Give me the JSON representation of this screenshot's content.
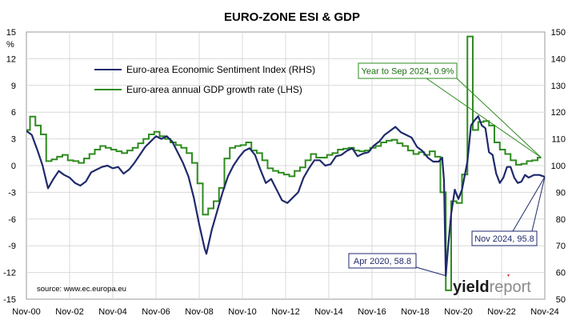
{
  "chart_data": {
    "type": "line",
    "title": "EURO-ZONE ESI & GDP",
    "x_ticks": [
      "Nov-00",
      "Nov-02",
      "Nov-04",
      "Nov-06",
      "Nov-08",
      "Nov-10",
      "Nov-12",
      "Nov-14",
      "Nov-16",
      "Nov-18",
      "Nov-20",
      "Nov-22",
      "Nov-24"
    ],
    "x_range": [
      "Nov-00",
      "Nov-24"
    ],
    "y_left": {
      "range": [
        -15,
        15
      ],
      "ticks": [
        "15",
        "12",
        "9",
        "6",
        "3",
        "0",
        "-3",
        "-6",
        "-9",
        "-12",
        "-15"
      ],
      "unit": "%"
    },
    "y_right": {
      "range": [
        50,
        150
      ],
      "ticks": [
        "150",
        "140",
        "130",
        "120",
        "110",
        "100",
        "90",
        "80",
        "70",
        "60",
        "50"
      ]
    },
    "grid": true,
    "legend_position": "top-left",
    "source": "source: www.ec.europa.eu",
    "brand": {
      "part1": "yield",
      "part2": "report"
    },
    "series": [
      {
        "name": "Euro-area Economic Sentiment Index (RHS)",
        "axis": "right",
        "color": "#1f2a6b",
        "points": [
          [
            "2000-11",
            113.0
          ],
          [
            "2001-02",
            111.5
          ],
          [
            "2001-05",
            106.0
          ],
          [
            "2001-08",
            100.0
          ],
          [
            "2001-11",
            91.5
          ],
          [
            "2002-02",
            95.0
          ],
          [
            "2002-05",
            98.0
          ],
          [
            "2002-08",
            96.5
          ],
          [
            "2002-11",
            95.5
          ],
          [
            "2003-02",
            93.5
          ],
          [
            "2003-05",
            92.5
          ],
          [
            "2003-08",
            94.0
          ],
          [
            "2003-11",
            97.5
          ],
          [
            "2004-02",
            98.5
          ],
          [
            "2004-05",
            99.5
          ],
          [
            "2004-08",
            100.0
          ],
          [
            "2004-11",
            99.0
          ],
          [
            "2005-02",
            99.5
          ],
          [
            "2005-05",
            97.0
          ],
          [
            "2005-08",
            98.5
          ],
          [
            "2005-11",
            101.0
          ],
          [
            "2006-02",
            104.0
          ],
          [
            "2006-05",
            107.0
          ],
          [
            "2006-08",
            109.0
          ],
          [
            "2006-11",
            111.0
          ],
          [
            "2007-02",
            110.0
          ],
          [
            "2007-05",
            111.0
          ],
          [
            "2007-08",
            109.0
          ],
          [
            "2007-11",
            105.0
          ],
          [
            "2008-02",
            101.0
          ],
          [
            "2008-05",
            96.0
          ],
          [
            "2008-08",
            88.0
          ],
          [
            "2008-11",
            78.0
          ],
          [
            "2009-02",
            69.0
          ],
          [
            "2009-03",
            67.0
          ],
          [
            "2009-06",
            76.0
          ],
          [
            "2009-09",
            83.0
          ],
          [
            "2009-12",
            90.0
          ],
          [
            "2010-03",
            96.0
          ],
          [
            "2010-06",
            100.0
          ],
          [
            "2010-09",
            103.0
          ],
          [
            "2010-12",
            105.5
          ],
          [
            "2011-03",
            106.5
          ],
          [
            "2011-06",
            104.0
          ],
          [
            "2011-09",
            98.5
          ],
          [
            "2011-12",
            93.5
          ],
          [
            "2012-03",
            95.0
          ],
          [
            "2012-06",
            91.0
          ],
          [
            "2012-09",
            87.0
          ],
          [
            "2012-12",
            86.0
          ],
          [
            "2013-03",
            88.0
          ],
          [
            "2013-06",
            90.0
          ],
          [
            "2013-09",
            95.5
          ],
          [
            "2013-12",
            99.0
          ],
          [
            "2014-03",
            102.0
          ],
          [
            "2014-06",
            102.0
          ],
          [
            "2014-09",
            100.0
          ],
          [
            "2014-12",
            100.5
          ],
          [
            "2015-03",
            103.5
          ],
          [
            "2015-06",
            104.0
          ],
          [
            "2015-09",
            105.5
          ],
          [
            "2015-12",
            106.5
          ],
          [
            "2016-03",
            103.5
          ],
          [
            "2016-06",
            104.5
          ],
          [
            "2016-09",
            105.0
          ],
          [
            "2016-12",
            107.5
          ],
          [
            "2017-03",
            109.0
          ],
          [
            "2017-06",
            111.5
          ],
          [
            "2017-09",
            113.0
          ],
          [
            "2017-12",
            114.5
          ],
          [
            "2018-03",
            112.5
          ],
          [
            "2018-06",
            111.5
          ],
          [
            "2018-09",
            110.5
          ],
          [
            "2018-12",
            107.0
          ],
          [
            "2019-03",
            105.5
          ],
          [
            "2019-06",
            103.0
          ],
          [
            "2019-09",
            101.5
          ],
          [
            "2019-12",
            101.5
          ],
          [
            "2020-02",
            103.0
          ],
          [
            "2020-03",
            94.5
          ],
          [
            "2020-04",
            58.8
          ],
          [
            "2020-05",
            67.5
          ],
          [
            "2020-07",
            82.0
          ],
          [
            "2020-09",
            91.0
          ],
          [
            "2020-11",
            87.5
          ],
          [
            "2021-01",
            91.0
          ],
          [
            "2021-04",
            101.5
          ],
          [
            "2021-06",
            115.0
          ],
          [
            "2021-08",
            117.0
          ],
          [
            "2021-10",
            118.5
          ],
          [
            "2021-12",
            115.0
          ],
          [
            "2022-02",
            114.0
          ],
          [
            "2022-04",
            105.0
          ],
          [
            "2022-06",
            104.0
          ],
          [
            "2022-08",
            97.0
          ],
          [
            "2022-10",
            93.5
          ],
          [
            "2022-12",
            95.5
          ],
          [
            "2023-02",
            99.5
          ],
          [
            "2023-04",
            99.5
          ],
          [
            "2023-06",
            95.5
          ],
          [
            "2023-08",
            93.5
          ],
          [
            "2023-10",
            94.0
          ],
          [
            "2023-12",
            96.5
          ],
          [
            "2024-02",
            95.5
          ],
          [
            "2024-05",
            96.5
          ],
          [
            "2024-08",
            96.5
          ],
          [
            "2024-11",
            95.8
          ]
        ]
      },
      {
        "name": "Euro-area annual GDP growth rate (LHS)",
        "axis": "left",
        "color": "#2e8b1f",
        "step": true,
        "points": [
          [
            "2000-11",
            4.0
          ],
          [
            "2001-01",
            5.5
          ],
          [
            "2001-04",
            4.5
          ],
          [
            "2001-07",
            3.5
          ],
          [
            "2001-10",
            0.5
          ],
          [
            "2002-01",
            0.7
          ],
          [
            "2002-04",
            1.0
          ],
          [
            "2002-07",
            1.2
          ],
          [
            "2002-10",
            0.6
          ],
          [
            "2003-01",
            0.5
          ],
          [
            "2003-04",
            0.3
          ],
          [
            "2003-07",
            0.8
          ],
          [
            "2003-10",
            1.3
          ],
          [
            "2004-01",
            1.8
          ],
          [
            "2004-04",
            2.2
          ],
          [
            "2004-07",
            2.0
          ],
          [
            "2004-10",
            1.8
          ],
          [
            "2005-01",
            1.6
          ],
          [
            "2005-04",
            1.4
          ],
          [
            "2005-07",
            1.7
          ],
          [
            "2005-10",
            2.0
          ],
          [
            "2006-01",
            2.5
          ],
          [
            "2006-04",
            3.0
          ],
          [
            "2006-07",
            3.5
          ],
          [
            "2006-10",
            3.8
          ],
          [
            "2007-01",
            3.3
          ],
          [
            "2007-04",
            3.0
          ],
          [
            "2007-07",
            2.6
          ],
          [
            "2007-10",
            2.3
          ],
          [
            "2008-01",
            2.0
          ],
          [
            "2008-04",
            1.4
          ],
          [
            "2008-07",
            0.3
          ],
          [
            "2008-10",
            -2.0
          ],
          [
            "2009-01",
            -5.5
          ],
          [
            "2009-04",
            -4.8
          ],
          [
            "2009-07",
            -4.0
          ],
          [
            "2009-10",
            -2.5
          ],
          [
            "2010-01",
            0.8
          ],
          [
            "2010-04",
            2.0
          ],
          [
            "2010-07",
            2.2
          ],
          [
            "2010-10",
            2.3
          ],
          [
            "2011-01",
            2.6
          ],
          [
            "2011-04",
            1.7
          ],
          [
            "2011-07",
            1.4
          ],
          [
            "2011-10",
            0.6
          ],
          [
            "2012-01",
            -0.3
          ],
          [
            "2012-04",
            -0.6
          ],
          [
            "2012-07",
            -0.8
          ],
          [
            "2012-10",
            -1.0
          ],
          [
            "2013-01",
            -1.2
          ],
          [
            "2013-04",
            -0.6
          ],
          [
            "2013-07",
            -0.2
          ],
          [
            "2013-10",
            0.6
          ],
          [
            "2014-01",
            1.3
          ],
          [
            "2014-04",
            0.9
          ],
          [
            "2014-07",
            0.9
          ],
          [
            "2014-10",
            1.2
          ],
          [
            "2015-01",
            1.4
          ],
          [
            "2015-04",
            1.8
          ],
          [
            "2015-07",
            1.9
          ],
          [
            "2015-10",
            2.0
          ],
          [
            "2016-01",
            1.7
          ],
          [
            "2016-04",
            1.6
          ],
          [
            "2016-07",
            1.7
          ],
          [
            "2016-10",
            2.0
          ],
          [
            "2017-01",
            2.2
          ],
          [
            "2017-04",
            2.6
          ],
          [
            "2017-07",
            2.8
          ],
          [
            "2017-10",
            2.9
          ],
          [
            "2018-01",
            2.5
          ],
          [
            "2018-04",
            2.2
          ],
          [
            "2018-07",
            1.7
          ],
          [
            "2018-10",
            1.3
          ],
          [
            "2019-01",
            1.5
          ],
          [
            "2019-04",
            1.2
          ],
          [
            "2019-07",
            1.6
          ],
          [
            "2019-10",
            1.0
          ],
          [
            "2020-01",
            -3.0
          ],
          [
            "2020-04",
            -14.0
          ],
          [
            "2020-07",
            -4.0
          ],
          [
            "2020-10",
            -4.2
          ],
          [
            "2021-01",
            -1.0
          ],
          [
            "2021-04",
            14.5
          ],
          [
            "2021-07",
            4.0
          ],
          [
            "2021-10",
            4.9
          ],
          [
            "2022-01",
            5.0
          ],
          [
            "2022-04",
            4.5
          ],
          [
            "2022-07",
            2.6
          ],
          [
            "2022-10",
            1.8
          ],
          [
            "2023-01",
            1.3
          ],
          [
            "2023-04",
            0.6
          ],
          [
            "2023-07",
            0.1
          ],
          [
            "2023-10",
            0.2
          ],
          [
            "2024-01",
            0.5
          ],
          [
            "2024-04",
            0.6
          ],
          [
            "2024-07",
            0.9
          ],
          [
            "2024-09",
            0.9
          ]
        ]
      }
    ],
    "annotations": [
      {
        "text": "Year to Sep 2024, 0.9%",
        "series": "gdp",
        "target": [
          "2024-09",
          0.9
        ]
      },
      {
        "text": "Nov 2024, 95.8",
        "series": "esi",
        "target": [
          "2024-11",
          95.8
        ]
      },
      {
        "text": "Apr 2020, 58.8",
        "series": "esi",
        "target": [
          "2020-04",
          58.8
        ]
      }
    ]
  }
}
